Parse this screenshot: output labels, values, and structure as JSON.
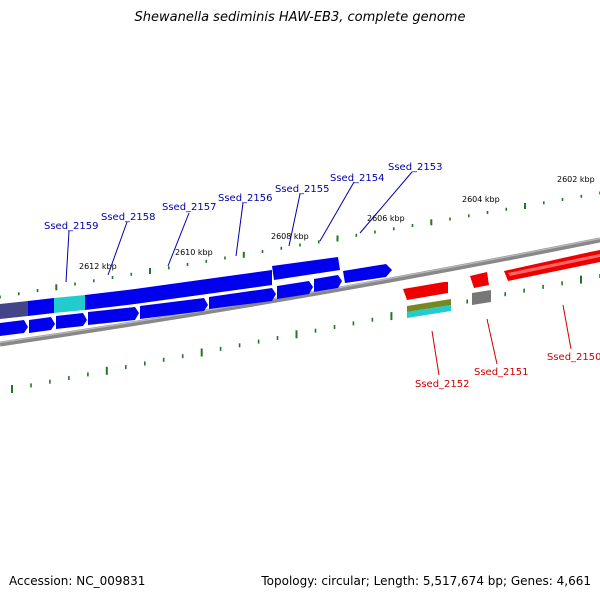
{
  "title": "Shewanella sediminis HAW-EB3, complete genome",
  "footer": {
    "accession": "Accession: NC_009831",
    "summary": "Topology: circular; Length: 5,517,674 bp; Genes: 4,661"
  },
  "colors": {
    "forward_cds": "#0000ee",
    "forward_dark": "#444488",
    "forward_cyan": "#22cccc",
    "reverse_cds": "#ee0000",
    "reverse_gray": "#777777",
    "rna_olive": "#778822",
    "rna_cyan": "#22cccc",
    "backbone": "#888888",
    "ticks": "#227722",
    "forward_label": "#0000aa",
    "reverse_label": "#cc0000"
  },
  "ticks": [
    {
      "label": "2602 kbp"
    },
    {
      "label": "2604 kbp"
    },
    {
      "label": "2606 kbp"
    },
    {
      "label": "2608 kbp"
    },
    {
      "label": "2610 kbp"
    },
    {
      "label": "2612 kbp"
    }
  ],
  "genes": {
    "forward": [
      {
        "label": "Ssed_2153"
      },
      {
        "label": "Ssed_2154"
      },
      {
        "label": "Ssed_2155"
      },
      {
        "label": "Ssed_2156"
      },
      {
        "label": "Ssed_2157"
      },
      {
        "label": "Ssed_2158"
      },
      {
        "label": "Ssed_2159"
      }
    ],
    "reverse": [
      {
        "label": "Ssed_2150"
      },
      {
        "label": "Ssed_2151"
      },
      {
        "label": "Ssed_2152"
      }
    ]
  }
}
